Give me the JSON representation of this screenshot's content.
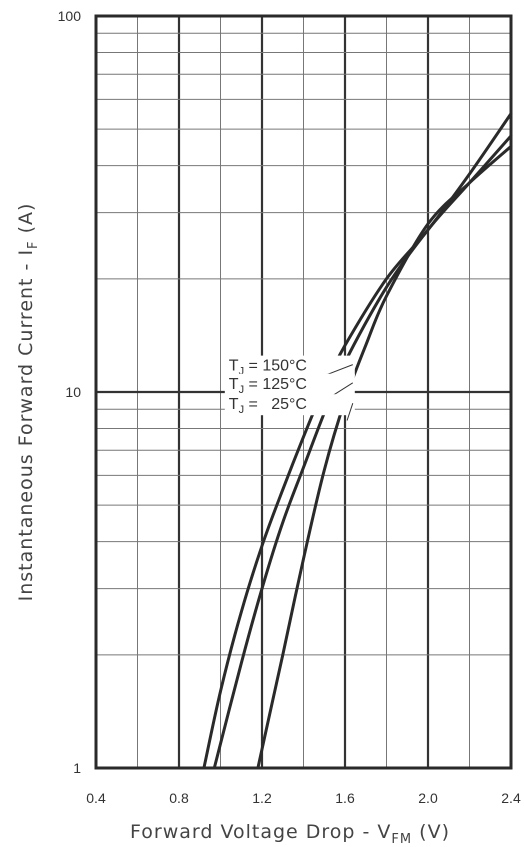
{
  "chart_data": {
    "type": "line",
    "xlabel": {
      "main": "Forward Voltage Drop - V",
      "sub": "FM",
      "unit": "(V)"
    },
    "ylabel": {
      "main": "Instantaneous Forward Current - I",
      "sub": "F",
      "unit": "(A)"
    },
    "x_ticks": [
      "0.4",
      "0.8",
      "1.2",
      "1.6",
      "2.0",
      "2.4"
    ],
    "y_ticks": [
      "1",
      "10",
      "100"
    ],
    "xlim": [
      0.4,
      2.4
    ],
    "ylim": [
      1,
      100
    ],
    "y_scale": "log",
    "grid": true,
    "series": [
      {
        "name": "T_J = 150°C",
        "label": {
          "prefix": "T",
          "sub": "J",
          "rest": " = 150°C"
        },
        "x": [
          0.92,
          1.0,
          1.1,
          1.2,
          1.3,
          1.4,
          1.5,
          1.6,
          1.8,
          2.0,
          2.2,
          2.4
        ],
        "y": [
          1.0,
          1.6,
          2.6,
          3.9,
          5.5,
          7.6,
          10.3,
          13.3,
          20.0,
          27.0,
          38.0,
          55.0
        ]
      },
      {
        "name": "T_J = 125°C",
        "label": {
          "prefix": "T",
          "sub": "J",
          "rest": " = 125°C"
        },
        "x": [
          0.97,
          1.1,
          1.2,
          1.3,
          1.4,
          1.5,
          1.6,
          1.8,
          2.0,
          2.2,
          2.4
        ],
        "y": [
          1.0,
          1.9,
          3.0,
          4.5,
          6.3,
          8.8,
          12.0,
          19.0,
          27.0,
          36.0,
          48.0
        ]
      },
      {
        "name": "T_J = 25°C",
        "label": {
          "prefix": "T",
          "sub": "J",
          "rest": " =   25°C"
        },
        "x": [
          1.18,
          1.25,
          1.3,
          1.4,
          1.5,
          1.6,
          1.7,
          1.8,
          2.0,
          2.2,
          2.4
        ],
        "y": [
          1.0,
          1.5,
          2.0,
          3.6,
          6.2,
          9.5,
          13.3,
          18.0,
          28.0,
          36.0,
          45.0
        ]
      }
    ],
    "annotations": [
      {
        "series": 0,
        "text_x": 1.04,
        "text_y": 11.4,
        "arrow_to": [
          1.49,
          11.0
        ]
      },
      {
        "series": 1,
        "text_x": 1.04,
        "text_y": 10.2,
        "arrow_to": [
          1.53,
          9.7
        ]
      },
      {
        "series": 2,
        "text_x": 1.04,
        "text_y": 9.0,
        "arrow_to": [
          1.61,
          8.4
        ]
      }
    ]
  }
}
